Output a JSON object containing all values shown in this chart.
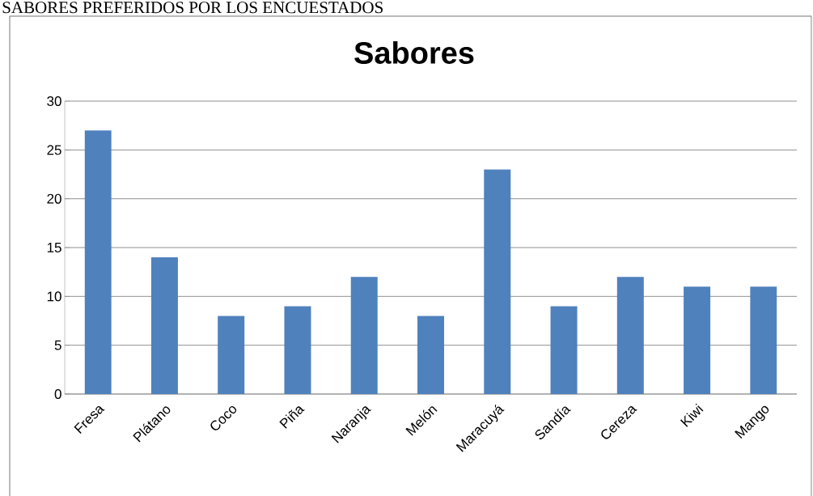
{
  "chart_data": {
    "type": "bar",
    "title": "Sabores",
    "annotations": [
      "SABORES PREFERIDOS POR LOS ENCUESTADOS"
    ],
    "categories": [
      "Fresa",
      "Plátano",
      "Coco",
      "Piña",
      "Naranja",
      "Melón",
      "Maracuyá",
      "Sandía",
      "Cereza",
      "Kiwi",
      "Mango"
    ],
    "values": [
      27,
      14,
      8,
      9,
      12,
      8,
      23,
      9,
      12,
      11,
      11
    ],
    "color": "#4f81bd",
    "ylim": [
      0,
      30
    ],
    "yticks": [
      0,
      5,
      10,
      15,
      20,
      25,
      30
    ],
    "grid": "y"
  }
}
